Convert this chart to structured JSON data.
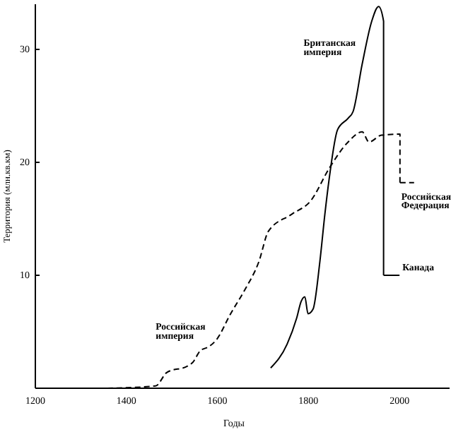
{
  "chart_data": {
    "type": "line",
    "xlabel": "Годы",
    "ylabel": "Территория (млн.кв.км)",
    "xlim": [
      1200,
      2110
    ],
    "xticks": [
      1200,
      1400,
      1600,
      1800,
      2000
    ],
    "ylim": [
      0,
      34
    ],
    "yticks": [
      10,
      20,
      30
    ],
    "grid": false,
    "legend": false,
    "marker": "none",
    "series": [
      {
        "name": "Российская империя",
        "color": "#000000",
        "line_style": "dashed",
        "x": [
          1358,
          1464,
          1489,
          1536,
          1546,
          1562,
          1582,
          1598,
          1629,
          1660,
          1691,
          1712,
          1763,
          1805,
          1846,
          1887,
          1918,
          1933,
          1960,
          2001,
          2001
        ],
        "values": [
          0,
          0.2,
          1.4,
          2.0,
          2.3,
          3.3,
          3.7,
          4.3,
          6.6,
          8.7,
          11.2,
          13.9,
          15.4,
          16.6,
          19.5,
          21.8,
          22.7,
          21.8,
          22.4,
          22.5,
          18.2
        ]
      },
      {
        "name": "Британская империя",
        "color": "#000000",
        "line_style": "solid",
        "x": [
          1717,
          1753,
          1774,
          1784,
          1792,
          1799,
          1810,
          1825,
          1836,
          1846,
          1864,
          1887,
          1898,
          1918,
          1939,
          1954,
          1965,
          1965
        ],
        "values": [
          1.8,
          3.9,
          6.2,
          7.7,
          8.1,
          6.6,
          7.0,
          11.2,
          15.4,
          18.7,
          22.9,
          23.9,
          24.5,
          28.7,
          32.5,
          33.8,
          32.5,
          10.0
        ]
      },
      {
        "name": "Канада",
        "color": "#000000",
        "line_style": "solid",
        "x": [
          1965,
          2000
        ],
        "values": [
          10.0,
          10.0
        ]
      },
      {
        "name": "Российская Федерация",
        "color": "#000000",
        "line_style": "dashed",
        "x": [
          2001,
          2032
        ],
        "values": [
          18.2,
          18.2
        ]
      }
    ]
  }
}
